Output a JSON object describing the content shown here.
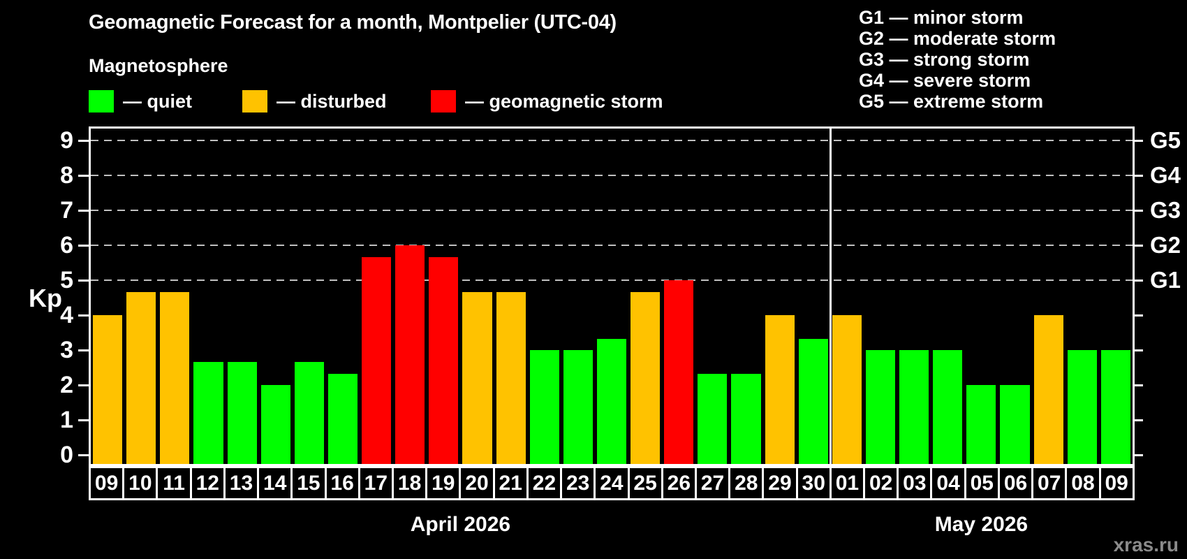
{
  "header": {
    "title": "Geomagnetic Forecast for a month, Montpelier (UTC-04)",
    "subtitle": "Magnetosphere"
  },
  "legend": {
    "quiet": "— quiet",
    "disturbed": "— disturbed",
    "storm": "— geomagnetic storm"
  },
  "storm_scale": [
    "G1 — minor storm",
    "G2 — moderate storm",
    "G3 — strong storm",
    "G4 — severe storm",
    "G5 — extreme storm"
  ],
  "watermark": "xras.ru",
  "colors": {
    "background": "#000000",
    "quiet": "#00ff00",
    "disturbed": "#ffc200",
    "storm": "#ff0000",
    "axis": "#ffffff",
    "grid": "#c0c0c0",
    "watermark": "#8a8a8a"
  },
  "chart_data": {
    "type": "bar",
    "title": "Geomagnetic Forecast for a month, Montpelier (UTC-04)",
    "ylabel": "Kp",
    "ylim": [
      0,
      9.4
    ],
    "yticks": [
      0,
      1,
      2,
      3,
      4,
      5,
      6,
      7,
      8,
      9
    ],
    "grid_levels": [
      5,
      6,
      7,
      8,
      9
    ],
    "right_axis": [
      {
        "label": "G1",
        "kp": 5
      },
      {
        "label": "G2",
        "kp": 6
      },
      {
        "label": "G3",
        "kp": 7
      },
      {
        "label": "G4",
        "kp": 8
      },
      {
        "label": "G5",
        "kp": 9
      }
    ],
    "months": [
      {
        "label": "April 2026",
        "days": 22
      },
      {
        "label": "May 2026",
        "days": 9
      }
    ],
    "bars": [
      {
        "day": "09",
        "kp": 4.0,
        "level": "disturbed"
      },
      {
        "day": "10",
        "kp": 4.67,
        "level": "disturbed"
      },
      {
        "day": "11",
        "kp": 4.67,
        "level": "disturbed"
      },
      {
        "day": "12",
        "kp": 2.67,
        "level": "quiet"
      },
      {
        "day": "13",
        "kp": 2.67,
        "level": "quiet"
      },
      {
        "day": "14",
        "kp": 2.0,
        "level": "quiet"
      },
      {
        "day": "15",
        "kp": 2.67,
        "level": "quiet"
      },
      {
        "day": "16",
        "kp": 2.33,
        "level": "quiet"
      },
      {
        "day": "17",
        "kp": 5.67,
        "level": "storm"
      },
      {
        "day": "18",
        "kp": 6.0,
        "level": "storm"
      },
      {
        "day": "19",
        "kp": 5.67,
        "level": "storm"
      },
      {
        "day": "20",
        "kp": 4.67,
        "level": "disturbed"
      },
      {
        "day": "21",
        "kp": 4.67,
        "level": "disturbed"
      },
      {
        "day": "22",
        "kp": 3.0,
        "level": "quiet"
      },
      {
        "day": "23",
        "kp": 3.0,
        "level": "quiet"
      },
      {
        "day": "24",
        "kp": 3.33,
        "level": "quiet"
      },
      {
        "day": "25",
        "kp": 4.67,
        "level": "disturbed"
      },
      {
        "day": "26",
        "kp": 5.0,
        "level": "storm"
      },
      {
        "day": "27",
        "kp": 2.33,
        "level": "quiet"
      },
      {
        "day": "28",
        "kp": 2.33,
        "level": "quiet"
      },
      {
        "day": "29",
        "kp": 4.0,
        "level": "disturbed"
      },
      {
        "day": "30",
        "kp": 3.33,
        "level": "quiet"
      },
      {
        "day": "01",
        "kp": 4.0,
        "level": "disturbed"
      },
      {
        "day": "02",
        "kp": 3.0,
        "level": "quiet"
      },
      {
        "day": "03",
        "kp": 3.0,
        "level": "quiet"
      },
      {
        "day": "04",
        "kp": 3.0,
        "level": "quiet"
      },
      {
        "day": "05",
        "kp": 2.0,
        "level": "quiet"
      },
      {
        "day": "06",
        "kp": 2.0,
        "level": "quiet"
      },
      {
        "day": "07",
        "kp": 4.0,
        "level": "disturbed"
      },
      {
        "day": "08",
        "kp": 3.0,
        "level": "quiet"
      },
      {
        "day": "09",
        "kp": 3.0,
        "level": "quiet"
      }
    ]
  }
}
